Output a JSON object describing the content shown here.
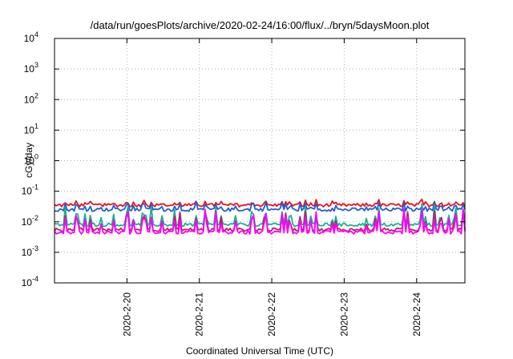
{
  "chart_data": {
    "type": "line",
    "title": "/data/run/goesPlots/archive/2020-02-24/16:00/flux/../bryn/5daysMoon.plot",
    "xlabel": "Coordinated Universal Time (UTC)",
    "ylabel": "cGy/day",
    "y_scale": "log",
    "ylim": [
      0.0001,
      10000
    ],
    "xlim": [
      "2020-02-19 00:00",
      "2020-02-24 16:00"
    ],
    "grid": true,
    "x_ticks": [
      "2020-2-20",
      "2020-2-21",
      "2020-2-22",
      "2020-2-23",
      "2020-2-24"
    ],
    "y_ticks": [
      {
        "base": "10",
        "exp": "-4"
      },
      {
        "base": "10",
        "exp": "-3"
      },
      {
        "base": "10",
        "exp": "-2"
      },
      {
        "base": "10",
        "exp": "-1"
      },
      {
        "base": "10",
        "exp": "0"
      },
      {
        "base": "10",
        "exp": "1"
      },
      {
        "base": "10",
        "exp": "2"
      },
      {
        "base": "10",
        "exp": "3"
      },
      {
        "base": "10",
        "exp": "4"
      }
    ],
    "series": [
      {
        "color": "#e8141c",
        "approx_baseline": 0.035,
        "approx_spike_max": 0.09
      },
      {
        "color": "#1f5fd6",
        "approx_baseline": 0.025,
        "approx_spike_max": 0.11
      },
      {
        "color": "#14b48c",
        "approx_baseline": 0.008,
        "approx_spike_max": 0.04
      },
      {
        "color": "#c41c6c",
        "approx_baseline": 0.0055,
        "approx_spike_max": 0.03
      },
      {
        "color": "#ff00ff",
        "approx_baseline": 0.0045,
        "approx_spike_max": 0.03
      }
    ]
  }
}
